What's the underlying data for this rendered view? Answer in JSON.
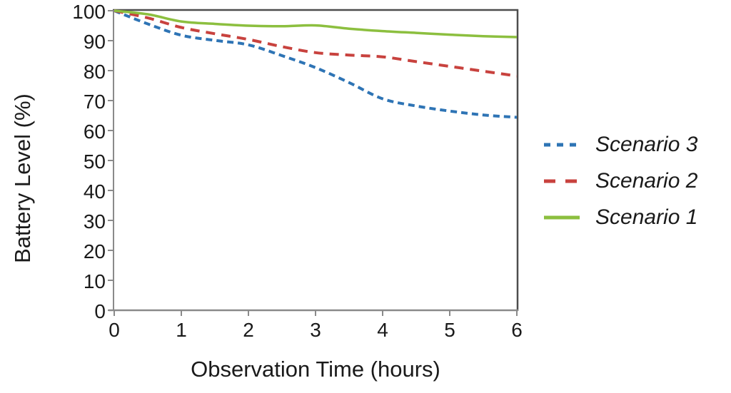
{
  "chart_data": {
    "type": "line",
    "title": "",
    "xlabel": "Observation Time (hours)",
    "ylabel": "Battery Level (%)",
    "xlim": [
      0,
      6
    ],
    "ylim": [
      0,
      100
    ],
    "xticks": [
      0,
      1,
      2,
      3,
      4,
      5,
      6
    ],
    "yticks": [
      0,
      10,
      20,
      30,
      40,
      50,
      60,
      70,
      80,
      90,
      100
    ],
    "grid": false,
    "legend_position": "right",
    "x": [
      0,
      0.5,
      1,
      1.5,
      2,
      2.5,
      3,
      3.5,
      4,
      4.5,
      5,
      5.5,
      6
    ],
    "series": [
      {
        "name": "Scenario 3",
        "color": "#2E74B5",
        "dash": "short-dash",
        "values": [
          100,
          95.6,
          91.8,
          90.1,
          88.6,
          85.0,
          81.0,
          76.0,
          70.6,
          68.2,
          66.5,
          65.2,
          64.4
        ]
      },
      {
        "name": "Scenario 2",
        "color": "#C8423E",
        "dash": "long-dash",
        "values": [
          100,
          97.6,
          94.4,
          92.3,
          90.4,
          88.0,
          86.0,
          85.2,
          84.6,
          83.0,
          81.4,
          79.8,
          78.2
        ]
      },
      {
        "name": "Scenario 1",
        "color": "#8CBF3F",
        "dash": "solid",
        "values": [
          100,
          98.8,
          96.4,
          95.6,
          95.0,
          94.8,
          95.1,
          94.0,
          93.2,
          92.6,
          92.0,
          91.5,
          91.2
        ]
      }
    ]
  }
}
